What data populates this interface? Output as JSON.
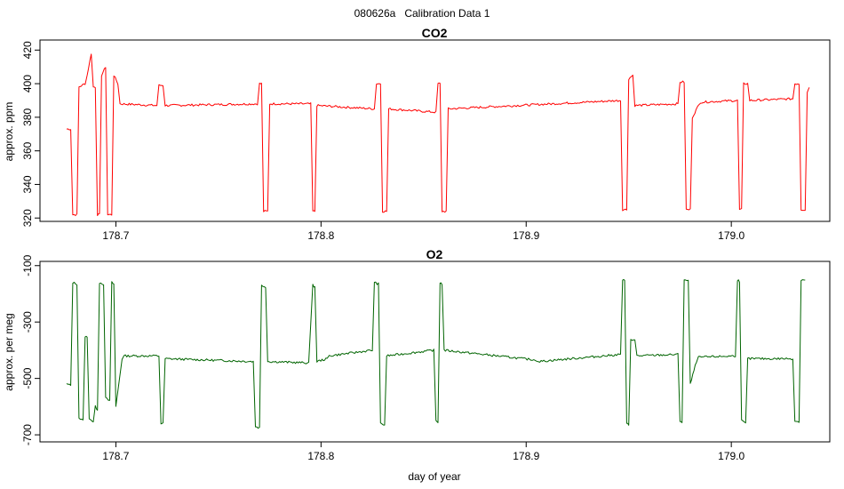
{
  "figure": {
    "title": "080626a   Calibration Data 1"
  },
  "chart_data": [
    {
      "type": "line",
      "title": "CO2",
      "xlabel": "",
      "ylabel": "approx. ppm",
      "xlim": [
        178.663,
        179.048
      ],
      "ylim": [
        318,
        426
      ],
      "xticks": [
        178.7,
        178.8,
        178.9,
        179.0
      ],
      "xtick_labels": [
        "178.7",
        "178.8",
        "178.9",
        "179.0"
      ],
      "yticks": [
        320,
        340,
        360,
        380,
        400,
        420
      ],
      "ytick_labels": [
        "320",
        "340",
        "360",
        "380",
        "400",
        "420"
      ],
      "color": "#ff0000",
      "grid": false,
      "segments": [
        [
          178.676,
          373,
          178.678,
          373
        ],
        [
          178.679,
          322,
          178.681,
          322
        ],
        [
          178.682,
          398,
          178.685,
          400
        ],
        [
          178.686,
          405,
          178.688,
          418
        ],
        [
          178.689,
          398,
          178.69,
          398
        ],
        [
          178.691,
          322,
          178.692,
          322
        ],
        [
          178.693,
          405,
          178.695,
          410
        ],
        [
          178.696,
          322,
          178.698,
          322
        ],
        [
          178.699,
          405,
          178.701,
          400
        ],
        [
          178.702,
          388,
          178.72,
          387
        ],
        [
          178.721,
          399,
          178.723,
          399
        ],
        [
          178.724,
          387,
          178.769,
          388
        ],
        [
          178.77,
          400,
          178.771,
          400
        ],
        [
          178.772,
          324,
          178.774,
          324
        ],
        [
          178.775,
          388,
          178.795,
          388
        ],
        [
          178.796,
          324,
          178.797,
          324
        ],
        [
          178.798,
          387,
          178.826,
          385
        ],
        [
          178.827,
          400,
          178.829,
          400
        ],
        [
          178.83,
          324,
          178.832,
          324
        ],
        [
          178.833,
          385,
          178.856,
          383
        ],
        [
          178.857,
          400,
          178.858,
          400
        ],
        [
          178.859,
          324,
          178.861,
          324
        ],
        [
          178.862,
          385,
          178.946,
          390
        ],
        [
          178.947,
          325,
          178.949,
          325
        ],
        [
          178.95,
          403,
          178.952,
          405
        ],
        [
          178.953,
          387,
          178.974,
          388
        ],
        [
          178.975,
          401,
          178.977,
          401
        ],
        [
          178.978,
          325,
          178.98,
          325
        ],
        [
          178.981,
          380,
          178.984,
          387
        ],
        [
          178.985,
          389,
          179.003,
          390
        ],
        [
          179.004,
          325,
          179.005,
          325
        ],
        [
          179.006,
          400,
          179.008,
          400
        ],
        [
          179.009,
          390,
          179.03,
          391
        ],
        [
          179.031,
          400,
          179.033,
          400
        ],
        [
          179.034,
          325,
          179.036,
          325
        ],
        [
          179.037,
          395,
          179.038,
          398
        ]
      ]
    },
    {
      "type": "line",
      "title": "O2",
      "xlabel": "day of year",
      "ylabel": "approx. per meg",
      "xlim": [
        178.663,
        179.048
      ],
      "ylim": [
        -725,
        -85
      ],
      "xticks": [
        178.7,
        178.8,
        178.9,
        179.0
      ],
      "xtick_labels": [
        "178.7",
        "178.8",
        "178.9",
        "179.0"
      ],
      "yticks": [
        -100,
        -300,
        -500,
        -700
      ],
      "ytick_labels": [
        "-100",
        "-300",
        "-500",
        "-700"
      ],
      "color": "#006400",
      "grid": false,
      "segments": [
        [
          178.676,
          -520,
          178.678,
          -525
        ],
        [
          178.679,
          -160,
          178.681,
          -165
        ],
        [
          178.682,
          -640,
          178.684,
          -650
        ],
        [
          178.685,
          -350,
          178.686,
          -355
        ],
        [
          178.687,
          -640,
          178.689,
          -655
        ],
        [
          178.69,
          -600,
          178.691,
          -610
        ],
        [
          178.692,
          -160,
          178.694,
          -165
        ],
        [
          178.695,
          -570,
          178.697,
          -580
        ],
        [
          178.698,
          -160,
          178.699,
          -165
        ],
        [
          178.7,
          -600,
          178.703,
          -430
        ],
        [
          178.704,
          -420,
          178.721,
          -420
        ],
        [
          178.722,
          -660,
          178.723,
          -660
        ],
        [
          178.724,
          -430,
          178.767,
          -440
        ],
        [
          178.768,
          -670,
          178.77,
          -675
        ],
        [
          178.771,
          -170,
          178.773,
          -175
        ],
        [
          178.774,
          -440,
          178.794,
          -445
        ],
        [
          178.796,
          -170,
          178.797,
          -175
        ],
        [
          178.798,
          -440,
          178.803,
          -430
        ],
        [
          178.804,
          -420,
          178.825,
          -400
        ],
        [
          178.826,
          -160,
          178.828,
          -165
        ],
        [
          178.829,
          -660,
          178.831,
          -665
        ],
        [
          178.832,
          -420,
          178.855,
          -400
        ],
        [
          178.856,
          -650,
          178.857,
          -655
        ],
        [
          178.858,
          -160,
          178.859,
          -165
        ],
        [
          178.86,
          -400,
          178.905,
          -435
        ],
        [
          178.906,
          -440,
          178.946,
          -415
        ],
        [
          178.947,
          -150,
          178.948,
          -155
        ],
        [
          178.949,
          -660,
          178.95,
          -665
        ],
        [
          178.951,
          -360,
          178.953,
          -365
        ],
        [
          178.954,
          -420,
          178.974,
          -415
        ],
        [
          178.975,
          -650,
          178.976,
          -655
        ],
        [
          178.977,
          -150,
          178.979,
          -155
        ],
        [
          178.98,
          -520,
          178.983,
          -440
        ],
        [
          178.984,
          -425,
          179.002,
          -420
        ],
        [
          179.003,
          -150,
          179.004,
          -155
        ],
        [
          179.005,
          -650,
          179.007,
          -660
        ],
        [
          179.008,
          -430,
          179.03,
          -430
        ],
        [
          179.031,
          -650,
          179.033,
          -655
        ],
        [
          179.034,
          -150,
          179.036,
          -150
        ]
      ]
    }
  ]
}
